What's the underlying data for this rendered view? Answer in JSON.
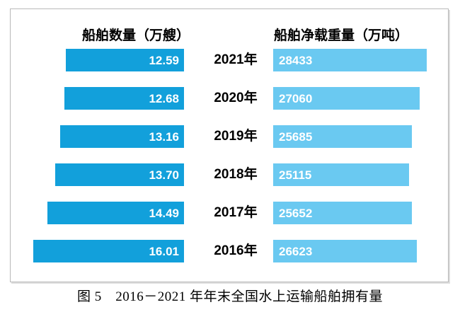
{
  "caption": "图 5　2016－2021 年年末全国水上运输船舶拥有量",
  "colors": {
    "left_bar": "#12A0DB",
    "right_bar": "#6AC9F1",
    "value_text": "#FFFFFF",
    "panel_border": "#B9B9B9"
  },
  "chart_data": {
    "type": "bar",
    "orientation": "horizontal-bidirectional",
    "title": "图 5　2016－2021 年年末全国水上运输船舶拥有量",
    "categories": [
      "2021年",
      "2020年",
      "2019年",
      "2018年",
      "2017年",
      "2016年"
    ],
    "series": [
      {
        "name": "船舶数量（万艘）",
        "side": "left",
        "color": "#12A0DB",
        "values": [
          12.59,
          12.68,
          13.16,
          13.7,
          14.49,
          16.01
        ],
        "labels": [
          "12.59",
          "12.68",
          "13.16",
          "13.70",
          "14.49",
          "16.01"
        ]
      },
      {
        "name": "船舶净载重量（万吨）",
        "side": "right",
        "color": "#6AC9F1",
        "values": [
          28433,
          27060,
          25685,
          25115,
          25652,
          26623
        ],
        "labels": [
          "28433",
          "27060",
          "25685",
          "25115",
          "25652",
          "26623"
        ]
      }
    ],
    "value_labels_shown": true,
    "axes_hidden": true,
    "gridlines": false,
    "legend_position": "column-headers-top",
    "left_axis_range": [
      0,
      16.01
    ],
    "right_axis_range": [
      0,
      28433
    ]
  }
}
